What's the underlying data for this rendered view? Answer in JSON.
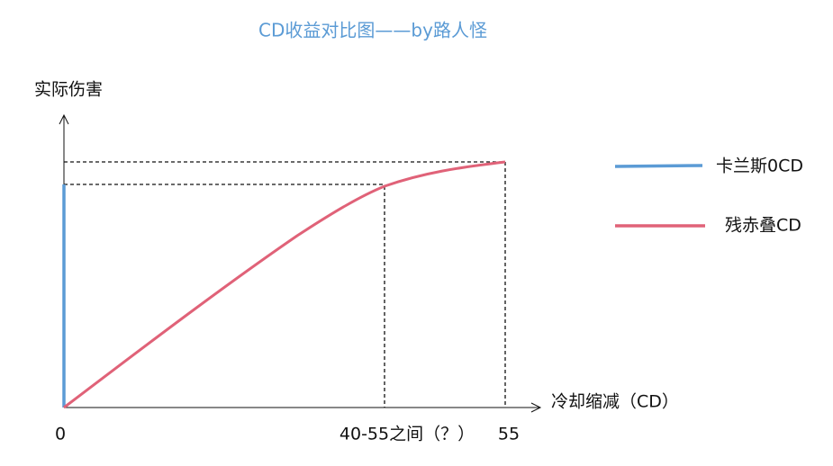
{
  "title": "CD收益对比图——by路人怪",
  "y_axis_label": "实际伤害",
  "x_axis_label": "冷却缩减（CD）",
  "x_labels": [
    "0",
    "40-55之间（？）",
    "55"
  ],
  "legend": [
    "卡兰斯0CD",
    "残赤叠CD"
  ]
}
